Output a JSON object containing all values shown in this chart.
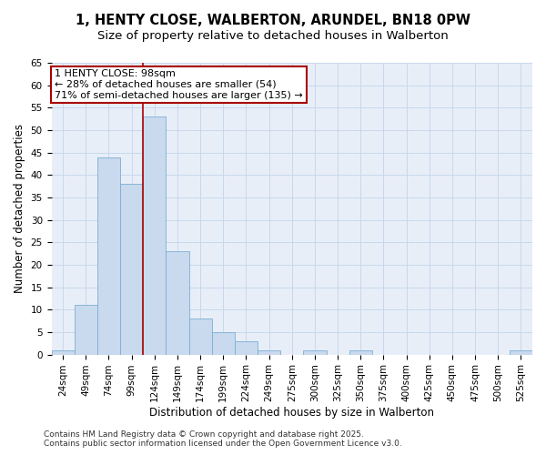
{
  "title_line1": "1, HENTY CLOSE, WALBERTON, ARUNDEL, BN18 0PW",
  "title_line2": "Size of property relative to detached houses in Walberton",
  "xlabel": "Distribution of detached houses by size in Walberton",
  "ylabel": "Number of detached properties",
  "categories": [
    "24sqm",
    "49sqm",
    "74sqm",
    "99sqm",
    "124sqm",
    "149sqm",
    "174sqm",
    "199sqm",
    "224sqm",
    "249sqm",
    "275sqm",
    "300sqm",
    "325sqm",
    "350sqm",
    "375sqm",
    "400sqm",
    "425sqm",
    "450sqm",
    "475sqm",
    "500sqm",
    "525sqm"
  ],
  "values": [
    1,
    11,
    44,
    38,
    53,
    23,
    8,
    5,
    3,
    1,
    0,
    1,
    0,
    1,
    0,
    0,
    0,
    0,
    0,
    0,
    1
  ],
  "bar_color": "#c9d9ee",
  "bar_edge_color": "#7bafd4",
  "vline_x": 3.5,
  "vline_color": "#aa0000",
  "annotation_text": "1 HENTY CLOSE: 98sqm\n← 28% of detached houses are smaller (54)\n71% of semi-detached houses are larger (135) →",
  "annotation_box_color": "#ffffff",
  "annotation_box_edge": "#aa0000",
  "grid_color": "#c8d8ec",
  "background_color": "#e8eef8",
  "ylim": [
    0,
    65
  ],
  "yticks": [
    0,
    5,
    10,
    15,
    20,
    25,
    30,
    35,
    40,
    45,
    50,
    55,
    60,
    65
  ],
  "footer_line1": "Contains HM Land Registry data © Crown copyright and database right 2025.",
  "footer_line2": "Contains public sector information licensed under the Open Government Licence v3.0.",
  "title_fontsize": 10.5,
  "subtitle_fontsize": 9.5,
  "axis_label_fontsize": 8.5,
  "tick_fontsize": 7.5,
  "annotation_fontsize": 8,
  "footer_fontsize": 6.5
}
